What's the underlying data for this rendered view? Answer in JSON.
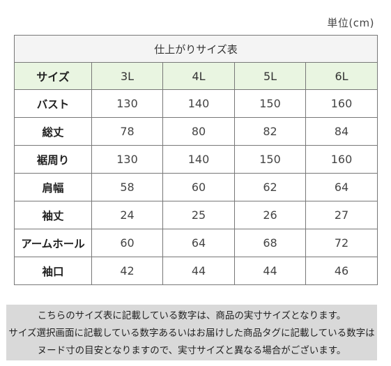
{
  "unit_label": "単位(cm)",
  "table": {
    "title": "仕上がりサイズ表",
    "header": {
      "label": "サイズ",
      "sizes": [
        "3L",
        "4L",
        "5L",
        "6L"
      ]
    },
    "rows": [
      {
        "label": "バスト",
        "values": [
          "130",
          "140",
          "150",
          "160"
        ]
      },
      {
        "label": "総丈",
        "values": [
          "78",
          "80",
          "82",
          "84"
        ]
      },
      {
        "label": "裾周り",
        "values": [
          "130",
          "140",
          "150",
          "160"
        ]
      },
      {
        "label": "肩幅",
        "values": [
          "58",
          "60",
          "62",
          "64"
        ]
      },
      {
        "label": "袖丈",
        "values": [
          "24",
          "25",
          "26",
          "27"
        ]
      },
      {
        "label": "アームホール",
        "values": [
          "60",
          "64",
          "68",
          "72"
        ]
      },
      {
        "label": "袖口",
        "values": [
          "42",
          "44",
          "44",
          "46"
        ]
      }
    ]
  },
  "note": {
    "lines": [
      "こちらのサイズ表に記載している数字は、商品の実寸サイズとなります。",
      "サイズ選択画面に記載している数字あるいはお届けした商品タグに記載している数字は",
      "ヌード寸の目安となりますので、実寸サイズと異なる場合がございます。"
    ]
  }
}
